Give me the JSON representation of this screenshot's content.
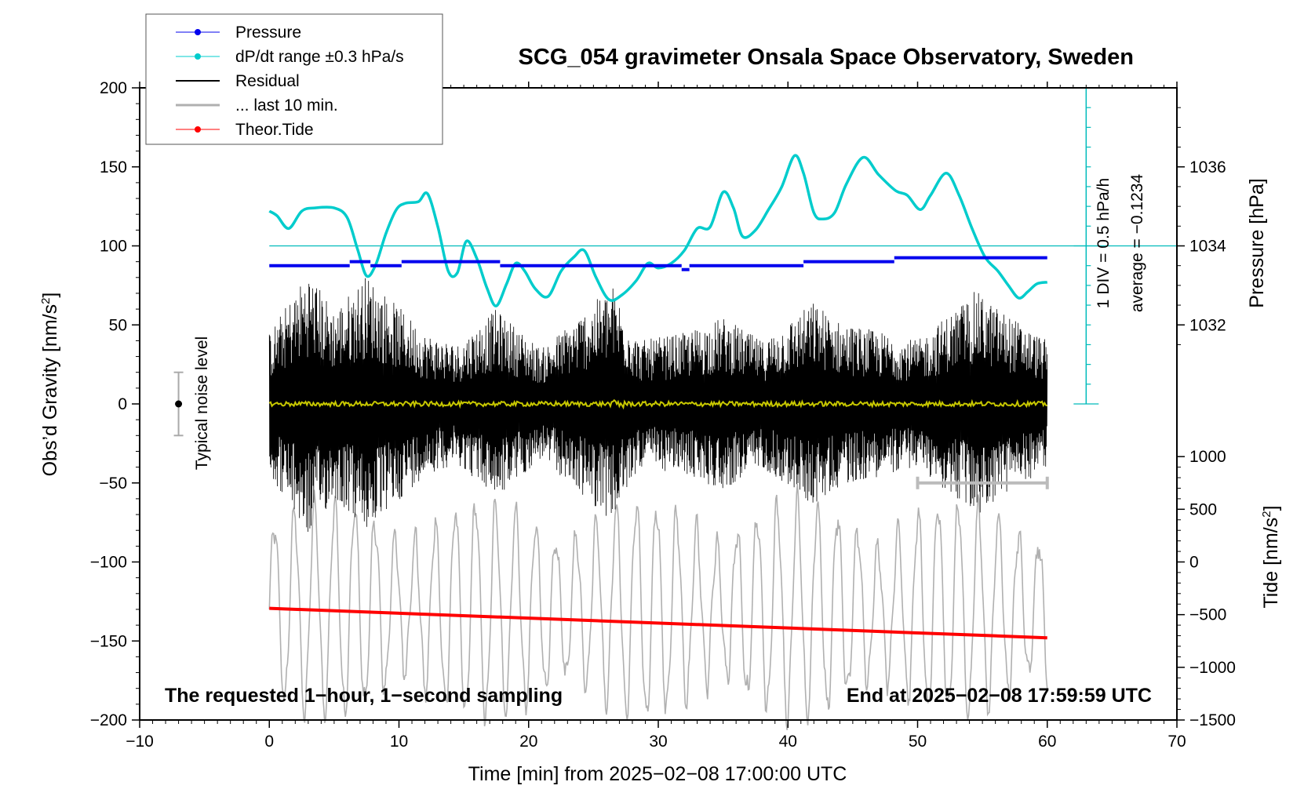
{
  "chart_data": {
    "type": "line",
    "title": "SCG_054 gravimeter Onsala Space Observatory, Sweden",
    "xlabel": "Time [min] from 2025−02−08 17:00:00 UTC",
    "xlim": [
      -10,
      70
    ],
    "x_ticks": [
      -10,
      0,
      10,
      20,
      30,
      40,
      50,
      60,
      70
    ],
    "x_tick_labels": [
      "−10",
      "0",
      "10",
      "20",
      "30",
      "40",
      "50",
      "60",
      "70"
    ],
    "left_axis": {
      "label": "Obs’d Gravity [nm/s²]",
      "ylim": [
        -200,
        200
      ],
      "ticks": [
        -200,
        -150,
        -100,
        -50,
        0,
        50,
        100,
        150,
        200
      ],
      "tick_labels": [
        "−200",
        "−150",
        "−100",
        "−50",
        "0",
        "50",
        "100",
        "150",
        "200"
      ]
    },
    "pressure_axis": {
      "label": "Pressure [hPa]",
      "ticks": [
        1032,
        1034,
        1036
      ],
      "tick_labels": [
        "1032",
        "1034",
        "1036"
      ],
      "gravity_equivalent": {
        "1032": 50,
        "1034": 100,
        "1036": 150
      }
    },
    "tide_axis": {
      "label": "Tide [nm/s²]",
      "ticks": [
        1000,
        500,
        0,
        -500,
        -1000,
        -1500
      ],
      "tick_labels": [
        "1000",
        "500",
        "0",
        "−500",
        "−1000",
        "−1500"
      ],
      "gravity_equivalent": {
        "1000": -33.33,
        "-1500": -200
      }
    },
    "dpdt_scale": {
      "div_label": "1 DIV = 0.5 hPa/h",
      "average_label": "average = −0.1234",
      "center_gravity": 100,
      "range_gravity": [
        0,
        200
      ],
      "x": 63
    },
    "noise_level": {
      "label": "Typical noise level",
      "x": -7,
      "center": 0,
      "range": [
        -20,
        20
      ]
    },
    "last10_marker": {
      "x_range": [
        50,
        60
      ],
      "y": -50
    },
    "legend": [
      {
        "name": "Pressure",
        "color": "#0000ee",
        "marker": true
      },
      {
        "name": "dP/dt range ±0.3 hPa/s",
        "color": "#00cccc",
        "marker": true
      },
      {
        "name": "Residual",
        "color": "#000000",
        "marker": false
      },
      {
        "name": "... last 10 min.",
        "color": "#b0b0b0",
        "marker": false
      },
      {
        "name": "Theor.Tide",
        "color": "#ff0000",
        "marker": true
      }
    ],
    "series": [
      {
        "name": "Pressure",
        "color": "#0000ee",
        "axis": "left_gravity_equivalent",
        "segments": [
          {
            "x": [
              0,
              6.2
            ],
            "y": 87.5
          },
          {
            "x": [
              6.2,
              7.8
            ],
            "y": 90
          },
          {
            "x": [
              7.8,
              10.2
            ],
            "y": 87.5
          },
          {
            "x": [
              10.2,
              17.8
            ],
            "y": 90
          },
          {
            "x": [
              17.8,
              31.8
            ],
            "y": 87.5
          },
          {
            "x": [
              31.8,
              32.4
            ],
            "y": 85
          },
          {
            "x": [
              32.4,
              41.2
            ],
            "y": 87.5
          },
          {
            "x": [
              41.2,
              48.2
            ],
            "y": 90
          },
          {
            "x": [
              48.2,
              60
            ],
            "y": 92.5
          }
        ]
      },
      {
        "name": "dP/dt range ±0.3 hPa/s",
        "color": "#00cccc",
        "axis": "left_gravity_equivalent",
        "x": [
          0,
          0.6,
          1.5,
          2.5,
          3.5,
          5,
          6,
          6.8,
          7.5,
          8.2,
          9,
          9.8,
          10.5,
          11.5,
          12.2,
          13,
          13.8,
          14.5,
          15.2,
          16,
          16.8,
          17.5,
          18.3,
          19,
          19.7,
          20.5,
          21.5,
          22.5,
          23.5,
          24.3,
          25.2,
          26.2,
          27.2,
          28.3,
          29.2,
          30,
          31,
          32,
          33,
          34,
          35,
          35.8,
          36.5,
          37.5,
          38.5,
          39.5,
          40.5,
          41.2,
          42,
          42.7,
          43.6,
          44.5,
          45.8,
          47,
          48.3,
          49.2,
          50.2,
          51,
          52.2,
          53.2,
          54.2,
          55.2,
          56.2,
          57,
          57.8,
          58.5,
          59.2,
          60
        ],
        "y": [
          122,
          119,
          111,
          122,
          124,
          124,
          118,
          98,
          81,
          88,
          108,
          123,
          127,
          128,
          133,
          112,
          84,
          83,
          103,
          92,
          73,
          62,
          76,
          89,
          84,
          73,
          68,
          84,
          93,
          97,
          80,
          66,
          69,
          78,
          89,
          86,
          89,
          97,
          111,
          112,
          134,
          124,
          106,
          110,
          123,
          137,
          157,
          146,
          121,
          117,
          121,
          139,
          156,
          145,
          135,
          132,
          123,
          132,
          146,
          132,
          111,
          93,
          84,
          75,
          67,
          71,
          76,
          77
        ]
      },
      {
        "name": "Residual",
        "color": "#000000",
        "axis": "left",
        "x_range": [
          0,
          60
        ],
        "y_range": [
          -85,
          85
        ],
        "envelope_min": [
          0,
          3,
          5,
          7.5,
          12,
          14.5,
          17.5,
          21,
          23,
          26.5,
          28.5,
          32,
          35,
          38,
          42,
          44,
          50,
          54.5,
          55.5,
          60
        ],
        "envelope_amp": [
          45,
          85,
          60,
          82,
          45,
          38,
          60,
          35,
          50,
          75,
          40,
          45,
          55,
          40,
          65,
          52,
          40,
          72,
          65,
          40
        ]
      },
      {
        "name": "... last 10 min.",
        "color": "#b0b0b0",
        "axis": "left",
        "x_range": [
          0,
          60
        ],
        "y_range": [
          -210,
          -50
        ]
      },
      {
        "name": "yellow trace",
        "color": "#c8c800",
        "axis": "left",
        "x_range": [
          0,
          60
        ],
        "y_range": [
          -5,
          5
        ]
      },
      {
        "name": "Theor.Tide",
        "color": "#ff0000",
        "axis": "tide",
        "x": [
          0,
          60
        ],
        "y": [
          -440,
          -720
        ]
      }
    ],
    "annotations": {
      "bottom_left": "The requested 1−hour, 1−second sampling",
      "bottom_right": "End at 2025−02−08 17:59:59 UTC"
    }
  }
}
